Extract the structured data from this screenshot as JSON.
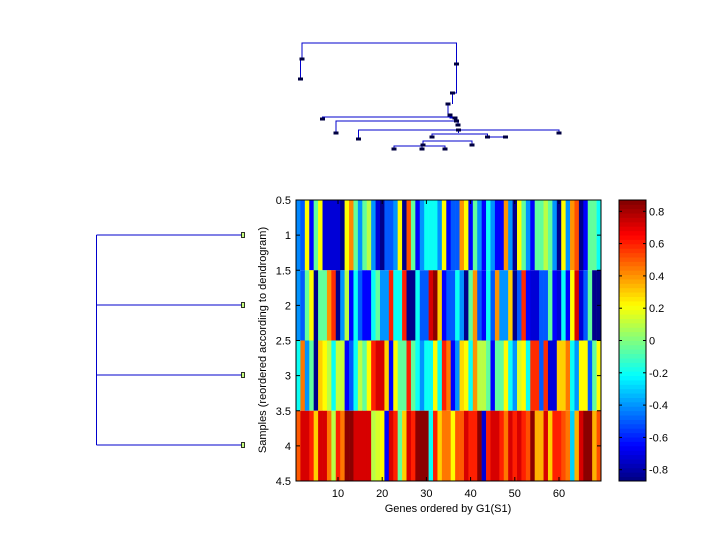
{
  "chart_data": {
    "type": "heatmap",
    "title": "",
    "xlabel": "Genes ordered by G1(S1)",
    "ylabel": "Samples (reordered according to dendrogram)",
    "colormap": "jet",
    "n_genes": 69,
    "xlim": [
      0.5,
      69.5
    ],
    "ylim": [
      0.5,
      4.5
    ],
    "x_ticks": [
      10,
      20,
      30,
      40,
      50,
      60
    ],
    "x_tick_labels": [
      "10",
      "20",
      "30",
      "40",
      "50",
      "60"
    ],
    "y_ticks": [
      0.5,
      1,
      1.5,
      2,
      2.5,
      3,
      3.5,
      4,
      4.5
    ],
    "y_tick_labels": [
      "0.5",
      "1",
      "1.5",
      "2",
      "2.5",
      "3",
      "3.5",
      "4",
      "4.5"
    ],
    "colorbar": {
      "range": [
        -0.87,
        0.87
      ],
      "ticks": [
        -0.8,
        -0.6,
        -0.4,
        -0.2,
        0,
        0.2,
        0.4,
        0.6,
        0.8
      ],
      "tick_labels": [
        "-0.8",
        "-0.6",
        "-0.4",
        "-0.2",
        "0",
        "0.2",
        "0.4",
        "0.6",
        "0.8"
      ]
    },
    "rows": [
      {
        "sample": 1,
        "values": [
          -0.42,
          -0.5,
          0.22,
          -0.65,
          -0.05,
          0.22,
          -0.72,
          -0.72,
          -0.72,
          -0.72,
          -0.85,
          0.22,
          0.42,
          -0.05,
          -0.4,
          -0.05,
          0.1,
          -0.4,
          -0.72,
          -0.85,
          -0.5,
          -0.5,
          -0.4,
          0.22,
          -0.85,
          0.52,
          -0.05,
          -0.65,
          -0.4,
          -0.2,
          -0.2,
          -0.2,
          -0.4,
          0.22,
          -0.65,
          -0.5,
          -0.5,
          0.4,
          0.22,
          -0.65,
          -0.05,
          -0.4,
          -0.65,
          -0.2,
          -0.4,
          -0.65,
          -0.65,
          0.4,
          -0.4,
          -0.85,
          0.22,
          -0.05,
          -0.4,
          -0.65,
          -0.05,
          -0.05,
          0.1,
          -0.05,
          -0.4,
          -0.85,
          0.22,
          -0.4,
          0.4,
          0.52,
          -0.85,
          -0.65,
          -0.05,
          -0.05,
          -0.2
        ]
      },
      {
        "sample": 2,
        "values": [
          -0.4,
          -0.5,
          -0.05,
          0.22,
          -0.85,
          -0.05,
          -0.05,
          0.4,
          0.58,
          -0.85,
          -0.4,
          0.1,
          -0.65,
          -0.2,
          -0.5,
          -0.65,
          -0.65,
          -0.2,
          -0.05,
          -0.4,
          -0.4,
          0.6,
          -0.2,
          -0.2,
          0.6,
          -0.85,
          -0.85,
          -0.2,
          -0.5,
          -0.5,
          0.72,
          0.85,
          0.3,
          -0.65,
          -0.5,
          -0.5,
          -0.2,
          -0.4,
          -0.85,
          -0.05,
          0.4,
          -0.5,
          -0.65,
          -0.2,
          -0.5,
          0.4,
          -0.4,
          -0.4,
          0.3,
          -0.85,
          -0.5,
          0.58,
          -0.65,
          -0.72,
          -0.72,
          -0.5,
          -0.5,
          -0.05,
          -0.65,
          -0.72,
          -0.2,
          -0.65,
          0.22,
          0.72,
          -0.72,
          -0.5,
          -0.05,
          -0.85,
          -0.85
        ]
      },
      {
        "sample": 3,
        "values": [
          -0.2,
          0.45,
          -0.4,
          -0.05,
          -0.85,
          0.3,
          0.22,
          0.1,
          -0.2,
          0.12,
          0.12,
          -0.65,
          -0.5,
          -0.2,
          0.1,
          -0.05,
          0.22,
          0.6,
          0.72,
          0.72,
          0.3,
          -0.65,
          0.22,
          -0.05,
          -0.05,
          0.6,
          -0.05,
          -0.2,
          -0.4,
          -0.2,
          -0.2,
          0.22,
          -0.2,
          0.6,
          0.45,
          -0.65,
          -0.4,
          0.28,
          0.22,
          -0.2,
          0.4,
          0.1,
          0.1,
          -0.05,
          -0.65,
          -0.05,
          -0.05,
          0.22,
          -0.2,
          -0.4,
          0.15,
          0.22,
          -0.2,
          0.58,
          0.58,
          -0.5,
          0.58,
          -0.72,
          -0.72,
          0.3,
          0.3,
          0.45,
          -0.2,
          -0.4,
          0.22,
          0.22,
          -0.5,
          -0.05,
          0.22
        ]
      },
      {
        "sample": 4,
        "values": [
          0.5,
          0.72,
          0.72,
          0.6,
          0.3,
          0.72,
          0.72,
          0.45,
          0.1,
          0.6,
          0.45,
          0.85,
          0.85,
          0.72,
          0.72,
          0.72,
          0.72,
          0.1,
          0.15,
          0.22,
          -0.65,
          0.72,
          0.6,
          -0.05,
          0.3,
          0.72,
          0.6,
          0.85,
          0.85,
          0.85,
          -0.2,
          0.6,
          0.3,
          0.45,
          0.45,
          0.22,
          0.5,
          0.5,
          0.72,
          0.6,
          0.6,
          0.85,
          -0.72,
          0.6,
          0.72,
          0.72,
          0.6,
          0.45,
          0.72,
          0.6,
          0.72,
          0.6,
          0.52,
          0.85,
          0.35,
          0.35,
          0.72,
          0.3,
          0.6,
          0.6,
          0.52,
          0.45,
          -0.3,
          0.35,
          0.72,
          0.85,
          0.85,
          0.35,
          0.52
        ]
      }
    ],
    "gene_dendrogram": {
      "description": "hierarchical clustering tree of genes (top)",
      "orientation": "top"
    },
    "sample_dendrogram": {
      "description": "flat clustering tree joining 4 samples (left)",
      "orientation": "left",
      "leaves": [
        1,
        2,
        3,
        4
      ]
    }
  }
}
